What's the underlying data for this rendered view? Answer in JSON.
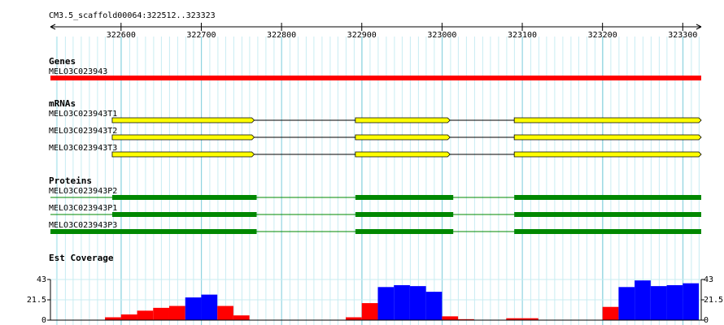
{
  "ruler": {
    "label": "CM3.5_scaffold00064:322512..323323",
    "xlim": [
      322512,
      323323
    ],
    "ticks": [
      322600,
      322700,
      322800,
      322900,
      323000,
      323100,
      323200,
      323300
    ]
  },
  "tracks": [
    {
      "title": "Genes",
      "type": "gene",
      "features": [
        {
          "label": "MELO3C023943",
          "start": 322512,
          "end": 323323
        }
      ]
    },
    {
      "title": "mRNAs",
      "type": "mrna",
      "features": [
        {
          "label": "MELO3C023943T1",
          "start": 322589,
          "end": 323323,
          "blocks": [
            [
              322589,
              322766
            ],
            [
              322892,
              323010
            ],
            [
              323090,
              323323
            ]
          ]
        },
        {
          "label": "MELO3C023943T2",
          "start": 322589,
          "end": 323323,
          "blocks": [
            [
              322589,
              322766
            ],
            [
              322892,
              323010
            ],
            [
              323090,
              323323
            ]
          ]
        },
        {
          "label": "MELO3C023943T3",
          "start": 322589,
          "end": 323323,
          "blocks": [
            [
              322589,
              322766
            ],
            [
              322892,
              323010
            ],
            [
              323090,
              323323
            ]
          ]
        }
      ]
    },
    {
      "title": "Proteins",
      "type": "protein",
      "features": [
        {
          "label": "MELO3C023943P2",
          "start": 322512,
          "end": 323323,
          "blocks": [
            [
              322589,
              322769
            ],
            [
              322892,
              323014
            ],
            [
              323090,
              323323
            ]
          ]
        },
        {
          "label": "MELO3C023943P1",
          "start": 322512,
          "end": 323323,
          "blocks": [
            [
              322589,
              322769
            ],
            [
              322892,
              323014
            ],
            [
              323090,
              323323
            ]
          ]
        },
        {
          "label": "MELO3C023943P3",
          "start": 322512,
          "end": 323323,
          "blocks": [
            [
              322512,
              322769
            ],
            [
              322892,
              323014
            ],
            [
              323090,
              323323
            ]
          ]
        }
      ]
    },
    {
      "title": "Est Coverage",
      "type": "coverage",
      "ylim": [
        0,
        43
      ],
      "yticks": [
        0,
        21.5,
        43
      ],
      "bins": [
        322580,
        322600,
        322620,
        322640,
        322660,
        322680,
        322700,
        322720,
        322740,
        322760,
        322780,
        322800,
        322820,
        322840,
        322860,
        322880,
        322900,
        322920,
        322940,
        322960,
        322980,
        323000,
        323020,
        323040,
        323060,
        323080,
        323100,
        323120,
        323140,
        323160,
        323180,
        323200,
        323220,
        323240,
        323260,
        323280,
        323300,
        323320
      ],
      "values": [
        3,
        6,
        10,
        13,
        15,
        24,
        27,
        15,
        5,
        0,
        0,
        0,
        0,
        0,
        0,
        3,
        18,
        35,
        37,
        36,
        30,
        4,
        1,
        0,
        0,
        2,
        2,
        0,
        0,
        0,
        0,
        14,
        35,
        42,
        36,
        37,
        39
      ],
      "colors": [
        "#f00",
        "#f00",
        "#f00",
        "#f00",
        "#f00",
        "#00f",
        "#00f",
        "#f00",
        "#f00",
        "#f00",
        "#f00",
        "#f00",
        "#f00",
        "#f00",
        "#f00",
        "#f00",
        "#f00",
        "#00f",
        "#00f",
        "#00f",
        "#00f",
        "#f00",
        "#f00",
        "#f00",
        "#f00",
        "#f00",
        "#f00",
        "#f00",
        "#f00",
        "#f00",
        "#f00",
        "#f00",
        "#00f",
        "#00f",
        "#00f",
        "#00f",
        "#00f"
      ]
    }
  ]
}
